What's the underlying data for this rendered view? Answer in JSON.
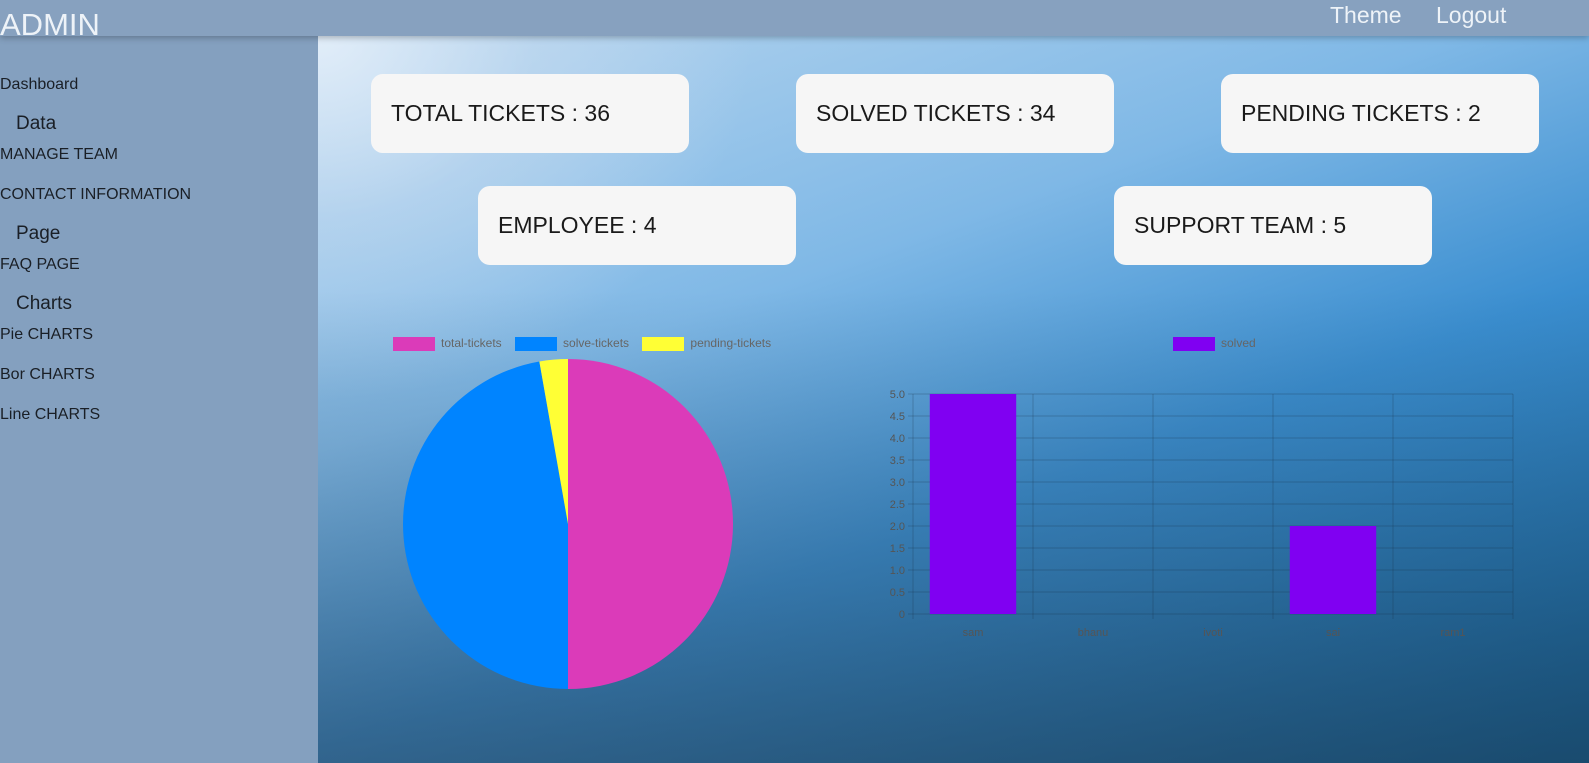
{
  "app": {
    "title": "ADMIN"
  },
  "topnav": {
    "theme": "Theme",
    "logout": "Logout"
  },
  "sidebar": {
    "dashboard": "Dashboard",
    "sections": [
      {
        "heading": "Data",
        "items": [
          "MANAGE TEAM",
          "CONTACT INFORMATION"
        ]
      },
      {
        "heading": "Page",
        "items": [
          "FAQ PAGE"
        ]
      },
      {
        "heading": "Charts",
        "items": [
          "Pie CHARTS",
          "Bor CHARTS",
          "Line CHARTS"
        ]
      }
    ]
  },
  "cards": {
    "total": "TOTAL TICKETS : 36",
    "solved": "SOLVED TICKETS : 34",
    "pending": "PENDING TICKETS : 2",
    "employee": "EMPLOYEE : 4",
    "support": "SUPPORT TEAM : 5"
  },
  "colors": {
    "total": "#db3bb9",
    "solved": "#0084ff",
    "pending": "#ffff35",
    "bar": "#8000f2"
  },
  "chart_data": [
    {
      "type": "pie",
      "legend": [
        "total-tickets",
        "solve-tickets",
        "pending-tickets"
      ],
      "values": [
        36,
        34,
        2
      ],
      "legend_position": "top"
    },
    {
      "type": "bar",
      "legend": [
        "solved"
      ],
      "categories": [
        "sam",
        "bhanu",
        "jyoti",
        "sai",
        "ram1"
      ],
      "series": [
        {
          "name": "solved",
          "values": [
            5,
            0,
            0,
            2,
            0
          ]
        }
      ],
      "ylim": [
        0,
        5
      ],
      "yticks": [
        "0",
        "0.5",
        "1.0",
        "1.5",
        "2.0",
        "2.5",
        "3.0",
        "3.5",
        "4.0",
        "4.5",
        "5.0"
      ],
      "grid": true,
      "legend_position": "top"
    }
  ]
}
